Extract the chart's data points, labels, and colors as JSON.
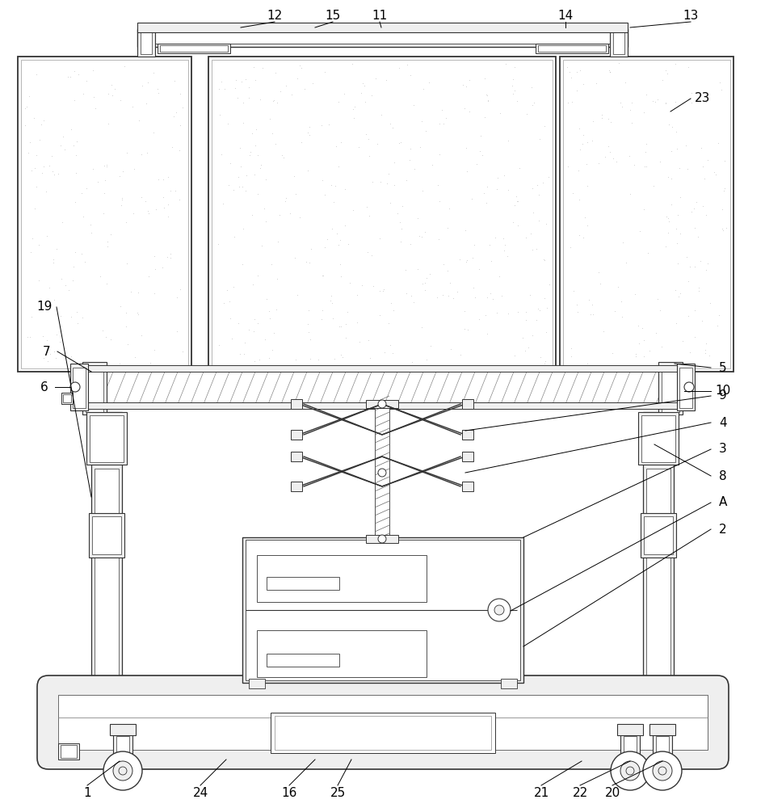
{
  "bg_color": "#ffffff",
  "lc": "#333333",
  "fc": "#efefef",
  "white": "#ffffff",
  "gray": "#aaaaaa"
}
